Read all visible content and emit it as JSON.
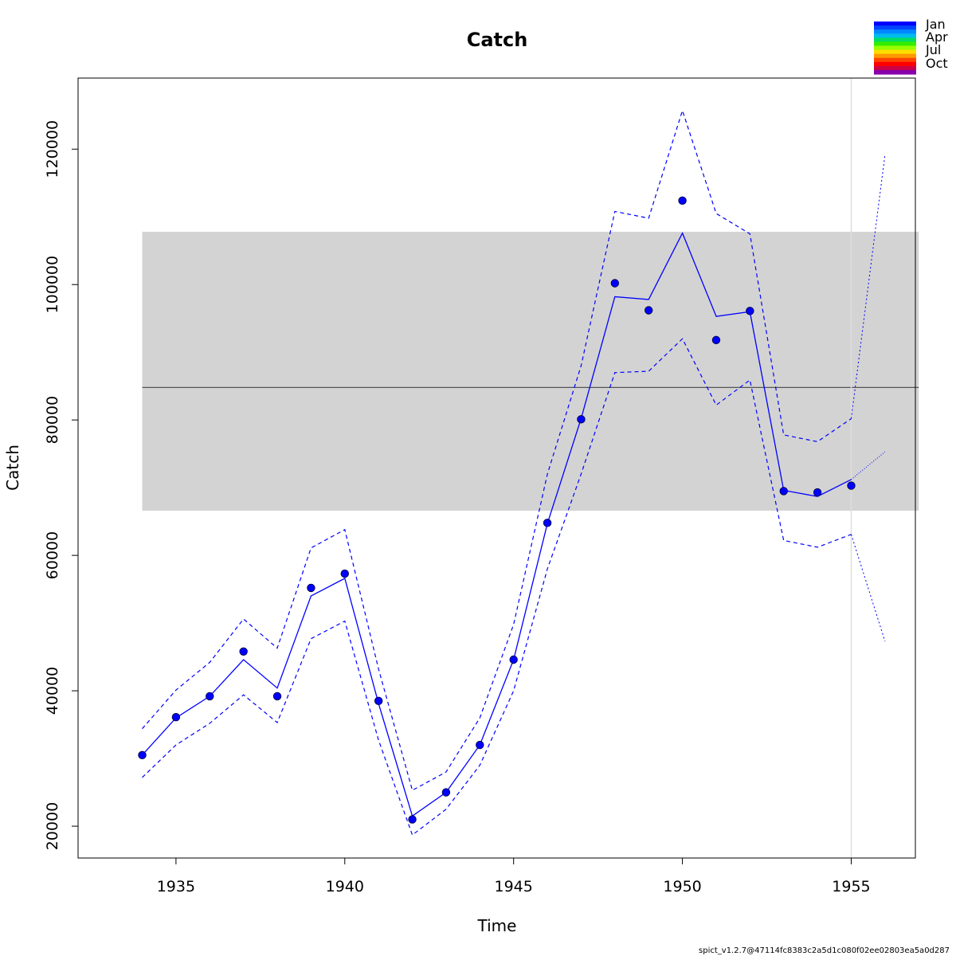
{
  "chart_data": {
    "type": "line",
    "title": "Catch",
    "xlabel": "Time",
    "ylabel": "Catch",
    "xlim": [
      1932.1,
      1956.9
    ],
    "ylim": [
      15300,
      130500
    ],
    "xticks": [
      1935,
      1940,
      1945,
      1950,
      1955
    ],
    "yticks": [
      20000,
      40000,
      60000,
      80000,
      100000,
      120000
    ],
    "grid": false,
    "observed": {
      "x": [
        1934,
        1935,
        1936,
        1937,
        1938,
        1939,
        1940,
        1941,
        1942,
        1943,
        1944,
        1945,
        1946,
        1947,
        1948,
        1949,
        1950,
        1951,
        1952,
        1953,
        1954,
        1955
      ],
      "y": [
        30500,
        36100,
        39200,
        45800,
        39200,
        55200,
        57300,
        38500,
        21000,
        25000,
        32000,
        44600,
        64800,
        80100,
        100200,
        96200,
        112400,
        91800,
        96100,
        69500,
        69300,
        70300
      ]
    },
    "predicted": {
      "x": [
        1934,
        1935,
        1936,
        1937,
        1938,
        1939,
        1940,
        1941,
        1942,
        1943,
        1944,
        1945,
        1946,
        1947,
        1948,
        1949,
        1950,
        1951,
        1952,
        1953,
        1954,
        1955
      ],
      "y": [
        30500,
        36000,
        39200,
        44600,
        40400,
        54000,
        56600,
        38100,
        21500,
        25000,
        32000,
        44600,
        64700,
        80200,
        98200,
        97800,
        107600,
        95300,
        96000,
        69600,
        68700,
        71200
      ]
    },
    "ci_upper": [
      34400,
      40100,
      44200,
      50600,
      46300,
      61100,
      63800,
      43200,
      25300,
      28000,
      36000,
      49800,
      72000,
      88000,
      110800,
      109800,
      125700,
      110500,
      107500,
      77800,
      76800,
      80200
    ],
    "ci_lower": [
      27200,
      32000,
      35200,
      39400,
      35300,
      47700,
      50300,
      32700,
      18700,
      22500,
      29000,
      40000,
      58000,
      72000,
      87000,
      87200,
      92000,
      82200,
      85900,
      62200,
      61200,
      63100
    ],
    "forecast": {
      "x": [
        1955,
        1956
      ],
      "y": [
        71200,
        75300
      ],
      "upper": [
        80200,
        119200
      ],
      "lower": [
        63100,
        47300
      ]
    },
    "msy_band": {
      "x_range": [
        1934,
        1957
      ],
      "center": 84800,
      "lower": 66600,
      "upper": 107800
    },
    "vertical_line_x": 1955,
    "legend": {
      "placement": "top-right",
      "labels": [
        "Jan",
        "Apr",
        "Jul",
        "Oct"
      ],
      "gradient_colors": [
        "#0000FF",
        "#0044FF",
        "#0088FF",
        "#00BBEE",
        "#00DD66",
        "#33EE00",
        "#99FF00",
        "#FFDD00",
        "#FF9900",
        "#FF4400",
        "#FF0000",
        "#CC0044",
        "#8800AA"
      ]
    },
    "colors": {
      "series": "#0000FF",
      "band": "#D3D3D3",
      "center_line": "#555555",
      "vertical_line": "#DDDDDD"
    }
  },
  "footer": "spict_v1.2.7@47114fc8383c2a5d1c080f02ee02803ea5a0d287"
}
